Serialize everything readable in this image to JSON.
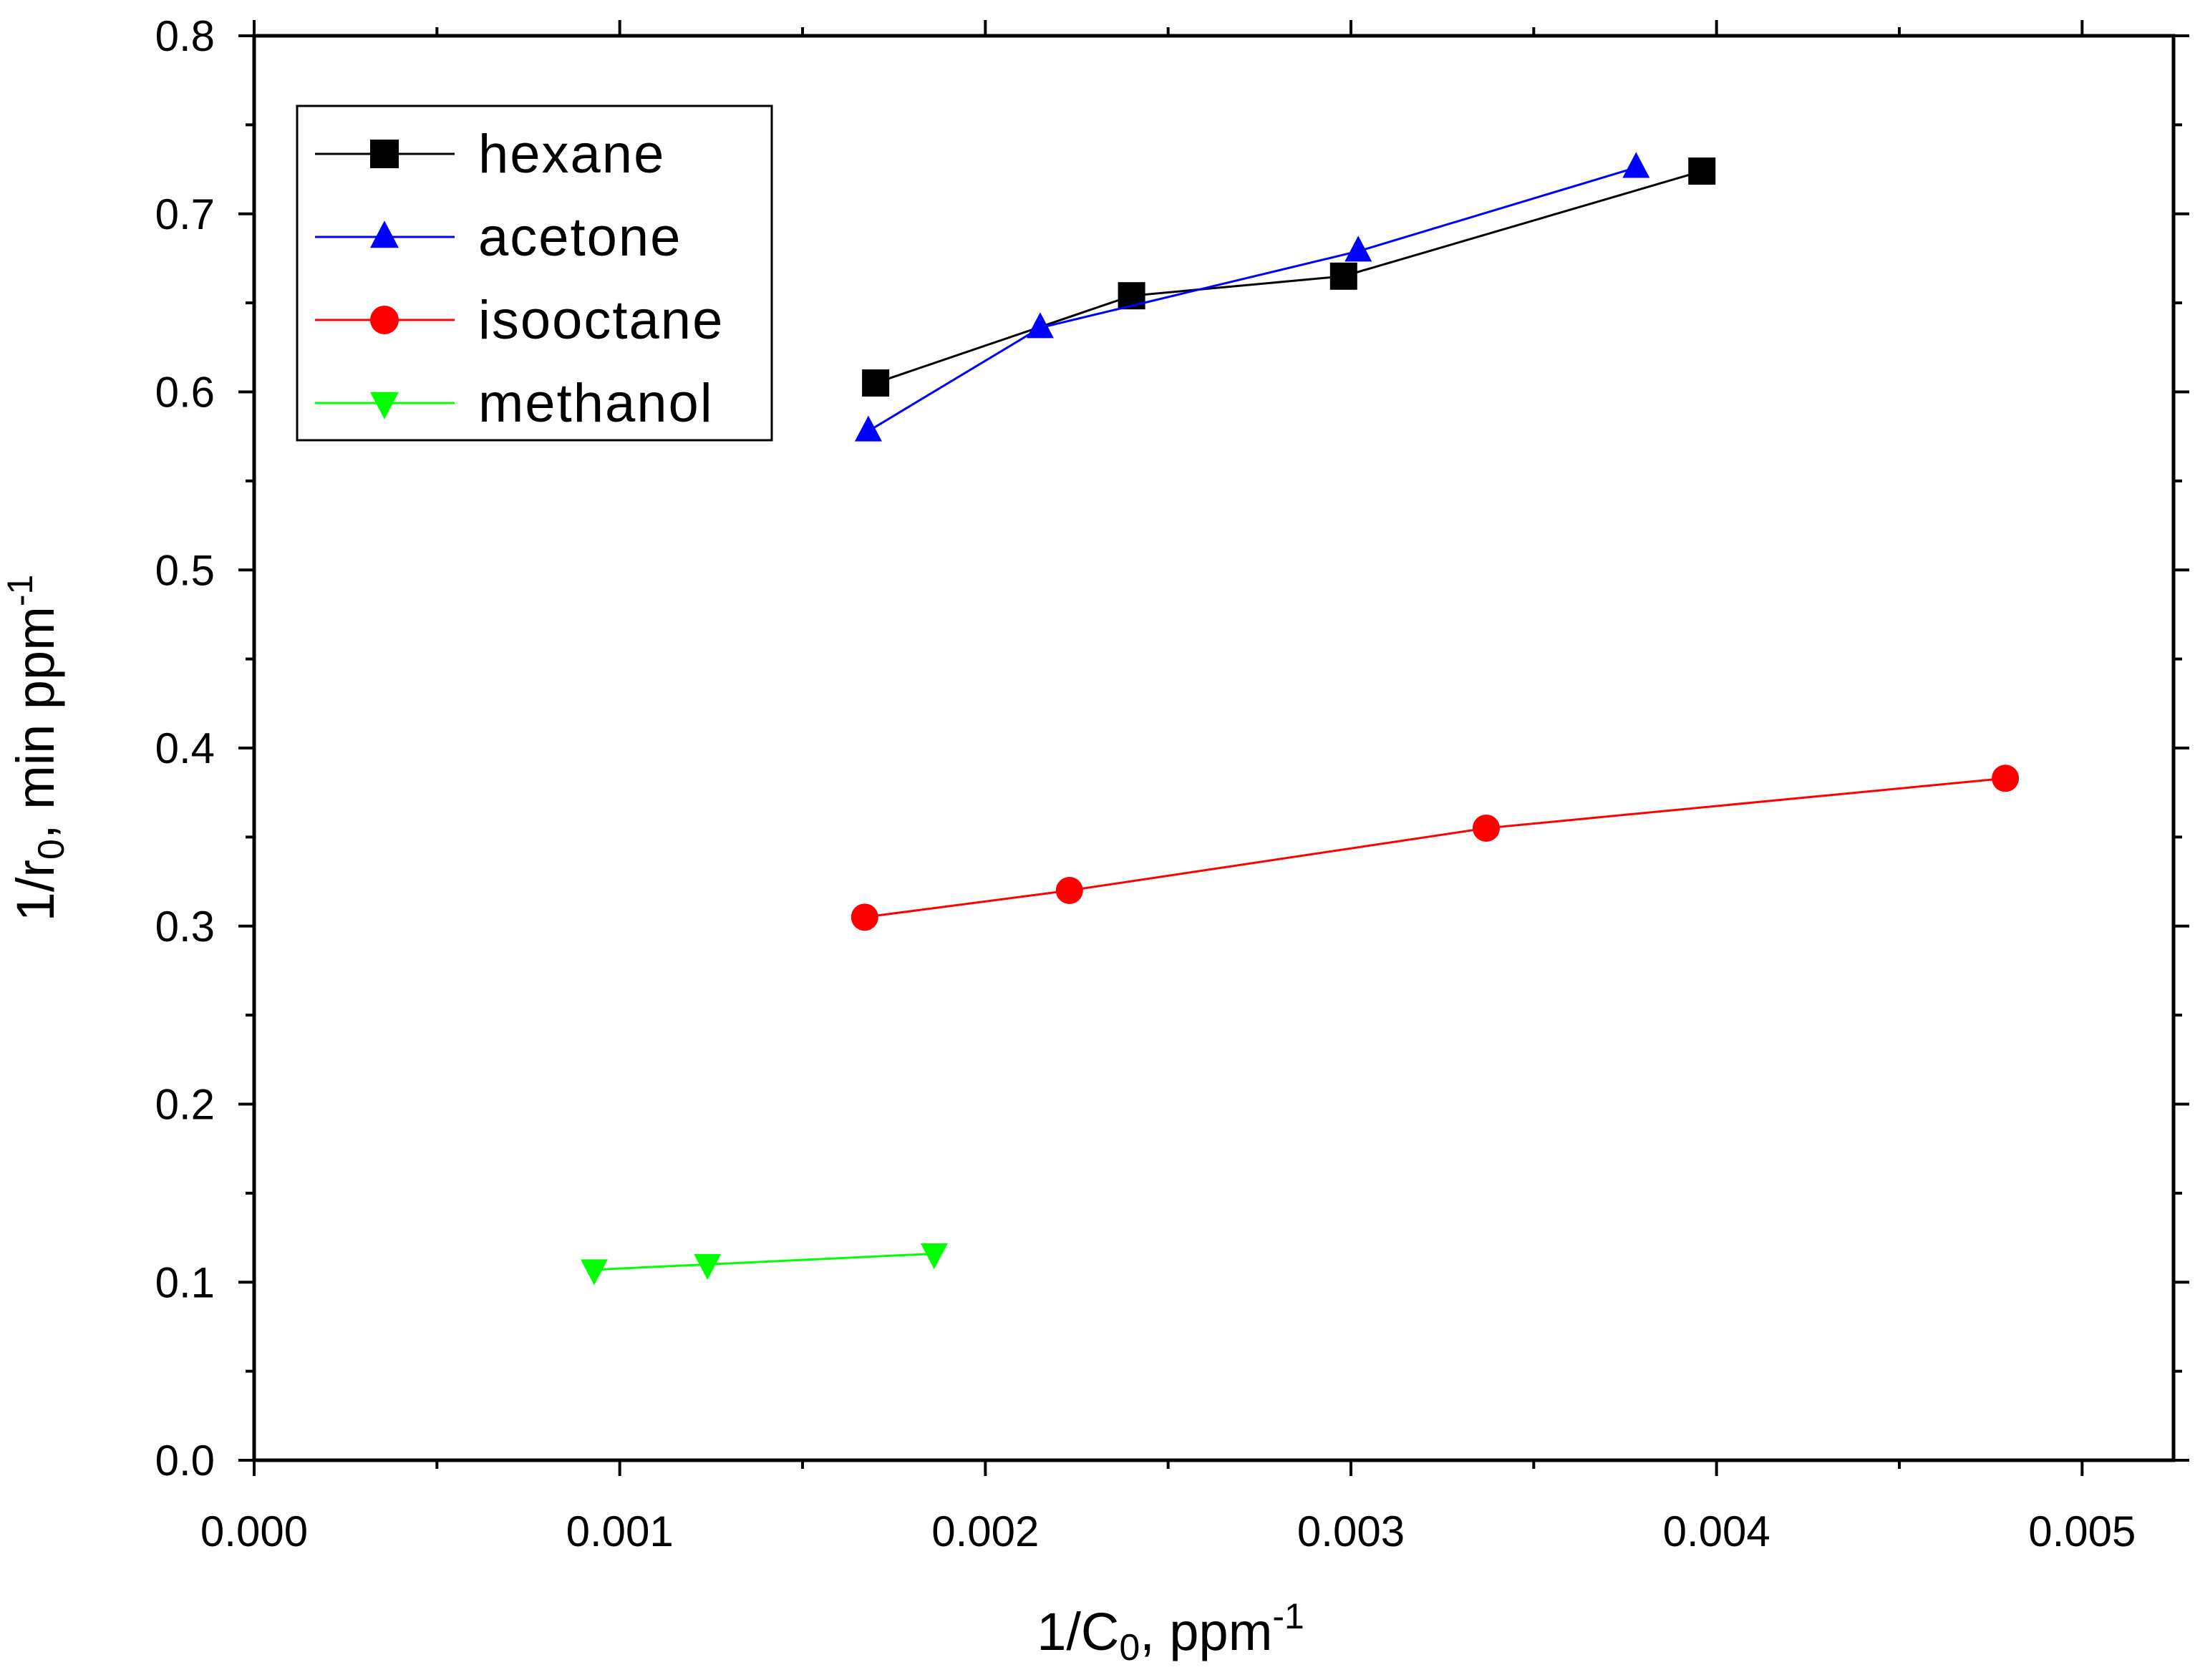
{
  "chart_data": {
    "type": "line",
    "title": "",
    "xlabel": {
      "main": "1/C",
      "sub": "0",
      "rest": ", ppm",
      "sup": "-1"
    },
    "ylabel": {
      "main": "1/r",
      "sub": "0",
      "rest": ", min ppm",
      "sup": "-1"
    },
    "xlim": [
      0,
      0.00525
    ],
    "ylim": [
      0,
      0.8
    ],
    "xticks": [
      0,
      0.001,
      0.002,
      0.003,
      0.004,
      0.005
    ],
    "xtick_labels": [
      "0.000",
      "0.001",
      "0.002",
      "0.003",
      "0.004",
      "0.005"
    ],
    "yticks": [
      0,
      0.1,
      0.2,
      0.3,
      0.4,
      0.5,
      0.6,
      0.7,
      0.8
    ],
    "ytick_labels": [
      "0.0",
      "0.1",
      "0.2",
      "0.3",
      "0.4",
      "0.5",
      "0.6",
      "0.7",
      "0.8"
    ],
    "grid": false,
    "legend_position": "top-left",
    "series": [
      {
        "name": "hexane",
        "marker": "square",
        "color": "#000000",
        "x": [
          0.0017,
          0.0024,
          0.00298,
          0.00396
        ],
        "y": [
          0.605,
          0.654,
          0.665,
          0.724
        ]
      },
      {
        "name": "acetone",
        "marker": "triangle-up",
        "color": "#0000ff",
        "x": [
          0.00168,
          0.00215,
          0.00302,
          0.00378
        ],
        "y": [
          0.578,
          0.636,
          0.679,
          0.726
        ]
      },
      {
        "name": "isooctane",
        "marker": "circle",
        "color": "#ff0000",
        "x": [
          0.00167,
          0.00223,
          0.00337,
          0.00479
        ],
        "y": [
          0.305,
          0.32,
          0.355,
          0.383
        ]
      },
      {
        "name": "methanol",
        "marker": "triangle-down",
        "color": "#00ff00",
        "x": [
          0.00093,
          0.00124,
          0.00186
        ],
        "y": [
          0.107,
          0.11,
          0.116
        ]
      }
    ]
  }
}
